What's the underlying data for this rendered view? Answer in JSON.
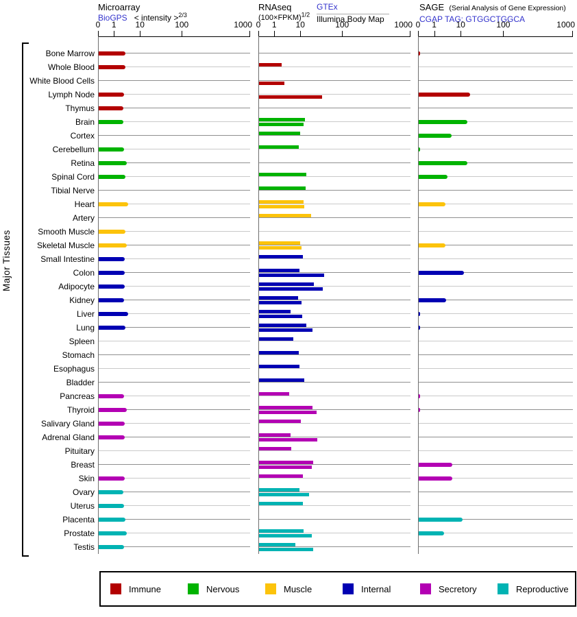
{
  "side_label": "Major Tissues",
  "headers": {
    "microarray": {
      "title": "Microarray",
      "link": "BioGPS",
      "intensity_label": "< intensity >",
      "intensity_exp": "2/3"
    },
    "rnaseq": {
      "title": "RNAseq",
      "formula": "(100×FPKM)",
      "formula_exp": "1/2",
      "source_top": "GTEx",
      "source_bottom": "Illumina Body Map"
    },
    "sage": {
      "title": "SAGE",
      "subtitle": "(Serial Analysis of Gene Expression)",
      "tag": "CGAP TAG: GTGGCTGGCA"
    }
  },
  "axis": {
    "tick_labels": [
      "0",
      "1",
      "10",
      "100",
      "1000"
    ],
    "tick_pos_pct": [
      0,
      10.5,
      27.7,
      55.3,
      100
    ]
  },
  "colors": {
    "immune": "#b30000",
    "nervous": "#00b300",
    "muscle": "#fcc30b",
    "internal": "#0000b3",
    "secretory": "#b300b3",
    "reproductive": "#00b3b3",
    "link": "#3333cc",
    "line_dark": "#8f8f8f",
    "line_light": "#c9c9c9"
  },
  "legend": [
    {
      "label": "Immune",
      "group": "immune"
    },
    {
      "label": "Nervous",
      "group": "nervous"
    },
    {
      "label": "Muscle",
      "group": "muscle"
    },
    {
      "label": "Internal",
      "group": "internal"
    },
    {
      "label": "Secretory",
      "group": "secretory"
    },
    {
      "label": "Reproductive",
      "group": "reproductive"
    }
  ],
  "chart_data": {
    "type": "bar",
    "orientation": "horizontal",
    "unit": "bar length as percent of axis width; axis ticks 0,1,10,100,1000 sit at 0/10.5/27.7/55.3/100 percent (power-transformed scale)",
    "panels": [
      "microarray",
      "rnaseq_gtex",
      "rnaseq_bodymap",
      "sage"
    ],
    "rows": [
      {
        "tissue": "Bone Marrow",
        "group": "immune",
        "microarray": 17.6,
        "rnaseq_gtex": null,
        "rnaseq_bodymap": null,
        "sage": 0.9
      },
      {
        "tissue": "Whole Blood",
        "group": "immune",
        "microarray": 17.6,
        "rnaseq_gtex": 14.9,
        "rnaseq_bodymap": null,
        "sage": null
      },
      {
        "tissue": "White Blood Cells",
        "group": "immune",
        "microarray": null,
        "rnaseq_gtex": null,
        "rnaseq_bodymap": 16.7,
        "sage": null
      },
      {
        "tissue": "Lymph Node",
        "group": "immune",
        "microarray": 16.7,
        "rnaseq_gtex": null,
        "rnaseq_bodymap": 41.6,
        "sage": 33.3
      },
      {
        "tissue": "Thymus",
        "group": "immune",
        "microarray": 16.3,
        "rnaseq_gtex": null,
        "rnaseq_bodymap": null,
        "sage": null
      },
      {
        "tissue": "Brain",
        "group": "nervous",
        "microarray": 16.3,
        "rnaseq_gtex": 30.3,
        "rnaseq_bodymap": 29.4,
        "sage": 31.6
      },
      {
        "tissue": "Cortex",
        "group": "nervous",
        "microarray": null,
        "rnaseq_gtex": 27.1,
        "rnaseq_bodymap": null,
        "sage": 21.3
      },
      {
        "tissue": "Cerebellum",
        "group": "nervous",
        "microarray": 16.7,
        "rnaseq_gtex": 26.2,
        "rnaseq_bodymap": null,
        "sage": 0.9
      },
      {
        "tissue": "Retina",
        "group": "nervous",
        "microarray": 18.6,
        "rnaseq_gtex": null,
        "rnaseq_bodymap": null,
        "sage": 31.6
      },
      {
        "tissue": "Spinal Cord",
        "group": "nervous",
        "microarray": 17.6,
        "rnaseq_gtex": 31.2,
        "rnaseq_bodymap": null,
        "sage": 18.7
      },
      {
        "tissue": "Tibial Nerve",
        "group": "nervous",
        "microarray": null,
        "rnaseq_gtex": 30.8,
        "rnaseq_bodymap": null,
        "sage": null
      },
      {
        "tissue": "Heart",
        "group": "muscle",
        "microarray": 19.5,
        "rnaseq_gtex": 29.4,
        "rnaseq_bodymap": 29.9,
        "sage": 17.3
      },
      {
        "tissue": "Artery",
        "group": "muscle",
        "microarray": null,
        "rnaseq_gtex": 34.4,
        "rnaseq_bodymap": null,
        "sage": null
      },
      {
        "tissue": "Smooth Muscle",
        "group": "muscle",
        "microarray": 17.6,
        "rnaseq_gtex": null,
        "rnaseq_bodymap": null,
        "sage": null
      },
      {
        "tissue": "Skeletal Muscle",
        "group": "muscle",
        "microarray": 18.6,
        "rnaseq_gtex": 27.1,
        "rnaseq_bodymap": 28.1,
        "sage": 17.3
      },
      {
        "tissue": "Small Intestine",
        "group": "internal",
        "microarray": 17.2,
        "rnaseq_gtex": 29.0,
        "rnaseq_bodymap": null,
        "sage": null
      },
      {
        "tissue": "Colon",
        "group": "internal",
        "microarray": 17.2,
        "rnaseq_gtex": 26.7,
        "rnaseq_bodymap": 43.0,
        "sage": 29.3
      },
      {
        "tissue": "Adipocyte",
        "group": "internal",
        "microarray": 17.2,
        "rnaseq_gtex": 36.2,
        "rnaseq_bodymap": 42.1,
        "sage": null
      },
      {
        "tissue": "Kidney",
        "group": "internal",
        "microarray": 16.7,
        "rnaseq_gtex": 25.8,
        "rnaseq_bodymap": 28.1,
        "sage": 17.8
      },
      {
        "tissue": "Liver",
        "group": "internal",
        "microarray": 19.5,
        "rnaseq_gtex": 20.8,
        "rnaseq_bodymap": 28.5,
        "sage": 0.9
      },
      {
        "tissue": "Lung",
        "group": "internal",
        "microarray": 17.6,
        "rnaseq_gtex": 31.2,
        "rnaseq_bodymap": 35.3,
        "sage": 0.9
      },
      {
        "tissue": "Spleen",
        "group": "internal",
        "microarray": null,
        "rnaseq_gtex": 22.6,
        "rnaseq_bodymap": null,
        "sage": null
      },
      {
        "tissue": "Stomach",
        "group": "internal",
        "microarray": null,
        "rnaseq_gtex": 26.2,
        "rnaseq_bodymap": null,
        "sage": null
      },
      {
        "tissue": "Esophagus",
        "group": "internal",
        "microarray": null,
        "rnaseq_gtex": 26.7,
        "rnaseq_bodymap": null,
        "sage": null
      },
      {
        "tissue": "Bladder",
        "group": "internal",
        "microarray": null,
        "rnaseq_gtex": 29.9,
        "rnaseq_bodymap": null,
        "sage": null
      },
      {
        "tissue": "Pancreas",
        "group": "secretory",
        "microarray": 16.7,
        "rnaseq_gtex": 19.9,
        "rnaseq_bodymap": null,
        "sage": 0.9
      },
      {
        "tissue": "Thyroid",
        "group": "secretory",
        "microarray": 18.6,
        "rnaseq_gtex": 35.3,
        "rnaseq_bodymap": 38.0,
        "sage": 0.9
      },
      {
        "tissue": "Salivary Gland",
        "group": "secretory",
        "microarray": 17.2,
        "rnaseq_gtex": 27.6,
        "rnaseq_bodymap": null,
        "sage": null
      },
      {
        "tissue": "Adrenal Gland",
        "group": "secretory",
        "microarray": 17.2,
        "rnaseq_gtex": 20.8,
        "rnaseq_bodymap": 38.5,
        "sage": null
      },
      {
        "tissue": "Pituitary",
        "group": "secretory",
        "microarray": null,
        "rnaseq_gtex": 21.3,
        "rnaseq_bodymap": null,
        "sage": null
      },
      {
        "tissue": "Breast",
        "group": "secretory",
        "microarray": null,
        "rnaseq_gtex": 35.7,
        "rnaseq_bodymap": 34.8,
        "sage": 21.8
      },
      {
        "tissue": "Skin",
        "group": "secretory",
        "microarray": 17.2,
        "rnaseq_gtex": 29.0,
        "rnaseq_bodymap": null,
        "sage": 21.8
      },
      {
        "tissue": "Ovary",
        "group": "reproductive",
        "microarray": 16.3,
        "rnaseq_gtex": 26.7,
        "rnaseq_bodymap": 33.0,
        "sage": null
      },
      {
        "tissue": "Uterus",
        "group": "reproductive",
        "microarray": 16.7,
        "rnaseq_gtex": 29.0,
        "rnaseq_bodymap": null,
        "sage": null
      },
      {
        "tissue": "Placenta",
        "group": "reproductive",
        "microarray": 17.6,
        "rnaseq_gtex": null,
        "rnaseq_bodymap": null,
        "sage": 28.4
      },
      {
        "tissue": "Prostate",
        "group": "reproductive",
        "microarray": 18.6,
        "rnaseq_gtex": 29.4,
        "rnaseq_bodymap": 34.8,
        "sage": 16.4
      },
      {
        "tissue": "Testis",
        "group": "reproductive",
        "microarray": 16.7,
        "rnaseq_gtex": 24.0,
        "rnaseq_bodymap": 35.7,
        "sage": null
      }
    ]
  }
}
